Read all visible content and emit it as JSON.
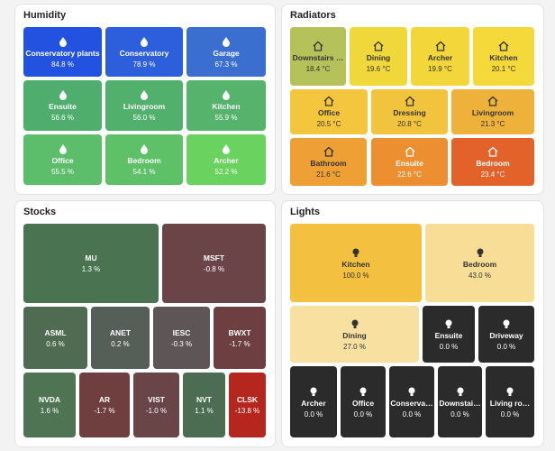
{
  "cards": [
    {
      "title": "Humidity",
      "icon": "drop",
      "tiles": [
        {
          "label": "Conservatory plants",
          "value": "84.8 %",
          "color": "#2452e0"
        },
        {
          "label": "Conservatory",
          "value": "78.9 %",
          "color": "#2d5fdc"
        },
        {
          "label": "Garage",
          "value": "67.3 %",
          "color": "#3a6fd0"
        },
        {
          "label": "Ensuite",
          "value": "56.6 %",
          "color": "#4fae6e"
        },
        {
          "label": "Livingroom",
          "value": "56.0 %",
          "color": "#52b06d"
        },
        {
          "label": "Kitchen",
          "value": "55.9 %",
          "color": "#55b36c"
        },
        {
          "label": "Office",
          "value": "55.5 %",
          "color": "#5cbd6a"
        },
        {
          "label": "Bedroom",
          "value": "54.1 %",
          "color": "#5ec168"
        },
        {
          "label": "Archer",
          "value": "52.2 %",
          "color": "#6ad25e"
        }
      ]
    },
    {
      "title": "Radiators",
      "icon": "house",
      "tiles": [
        {
          "label": "Downstairs …",
          "value": "18.4 °C",
          "color": "#b5c25a"
        },
        {
          "label": "Dining",
          "value": "19.6 °C",
          "color": "#f0d83a"
        },
        {
          "label": "Archer",
          "value": "19.9 °C",
          "color": "#f2d63a"
        },
        {
          "label": "Kitchen",
          "value": "20.1 °C",
          "color": "#f5d93b"
        },
        {
          "label": "Office",
          "value": "20.5 °C",
          "color": "#f3c63d"
        },
        {
          "label": "Dressing",
          "value": "20.8 °C",
          "color": "#f2c33c"
        },
        {
          "label": "Livingroom",
          "value": "21.3 °C",
          "color": "#eeb23a"
        },
        {
          "label": "Bathroom",
          "value": "21.6 °C",
          "color": "#eea035"
        },
        {
          "label": "Ensuite",
          "value": "22.6 °C",
          "color": "#ec8f30"
        },
        {
          "label": "Bedroom",
          "value": "23.4 °C",
          "color": "#e3622a"
        }
      ]
    },
    {
      "title": "Stocks",
      "icon": "none",
      "tiles": [
        {
          "label": "MU",
          "value": "1.3 %",
          "color": "#4a7351"
        },
        {
          "label": "MSFT",
          "value": "-0.8 %",
          "color": "#6b4447"
        },
        {
          "label": "ASML",
          "value": "0.6 %",
          "color": "#4f6b52"
        },
        {
          "label": "ANET",
          "value": "0.2 %",
          "color": "#565e58"
        },
        {
          "label": "IESC",
          "value": "-0.3 %",
          "color": "#5e5556"
        },
        {
          "label": "BWXT",
          "value": "-1.7 %",
          "color": "#6e3f40"
        },
        {
          "label": "NVDA",
          "value": "1.6 %",
          "color": "#4f7454"
        },
        {
          "label": "AR",
          "value": "-1.7 %",
          "color": "#6f3f40"
        },
        {
          "label": "VIST",
          "value": "-1.0 %",
          "color": "#6a4547"
        },
        {
          "label": "NVT",
          "value": "1.1 %",
          "color": "#4d6d52"
        },
        {
          "label": "CLSK",
          "value": "-13.8 %",
          "color": "#b5261f"
        }
      ]
    },
    {
      "title": "Lights",
      "icon": "bulb",
      "tiles": [
        {
          "label": "Kitchen",
          "value": "100.0 %",
          "color": "#f3c040"
        },
        {
          "label": "Bedroom",
          "value": "43.0 %",
          "color": "#f8dd97"
        },
        {
          "label": "Dining",
          "value": "27.0 %",
          "color": "#f8e0a0"
        },
        {
          "label": "Ensuite",
          "value": "0.0 %",
          "color": "#2b2b2b"
        },
        {
          "label": "Driveway",
          "value": "0.0 %",
          "color": "#2b2b2b"
        },
        {
          "label": "Archer",
          "value": "0.0 %",
          "color": "#2b2b2b"
        },
        {
          "label": "Office",
          "value": "0.0 %",
          "color": "#2b2b2b"
        },
        {
          "label": "Conserva…",
          "value": "0.0 %",
          "color": "#2b2b2b"
        },
        {
          "label": "Downstai…",
          "value": "0.0 %",
          "color": "#2b2b2b"
        },
        {
          "label": "Living ro…",
          "value": "0.0 %",
          "color": "#2b2b2b"
        }
      ]
    }
  ]
}
